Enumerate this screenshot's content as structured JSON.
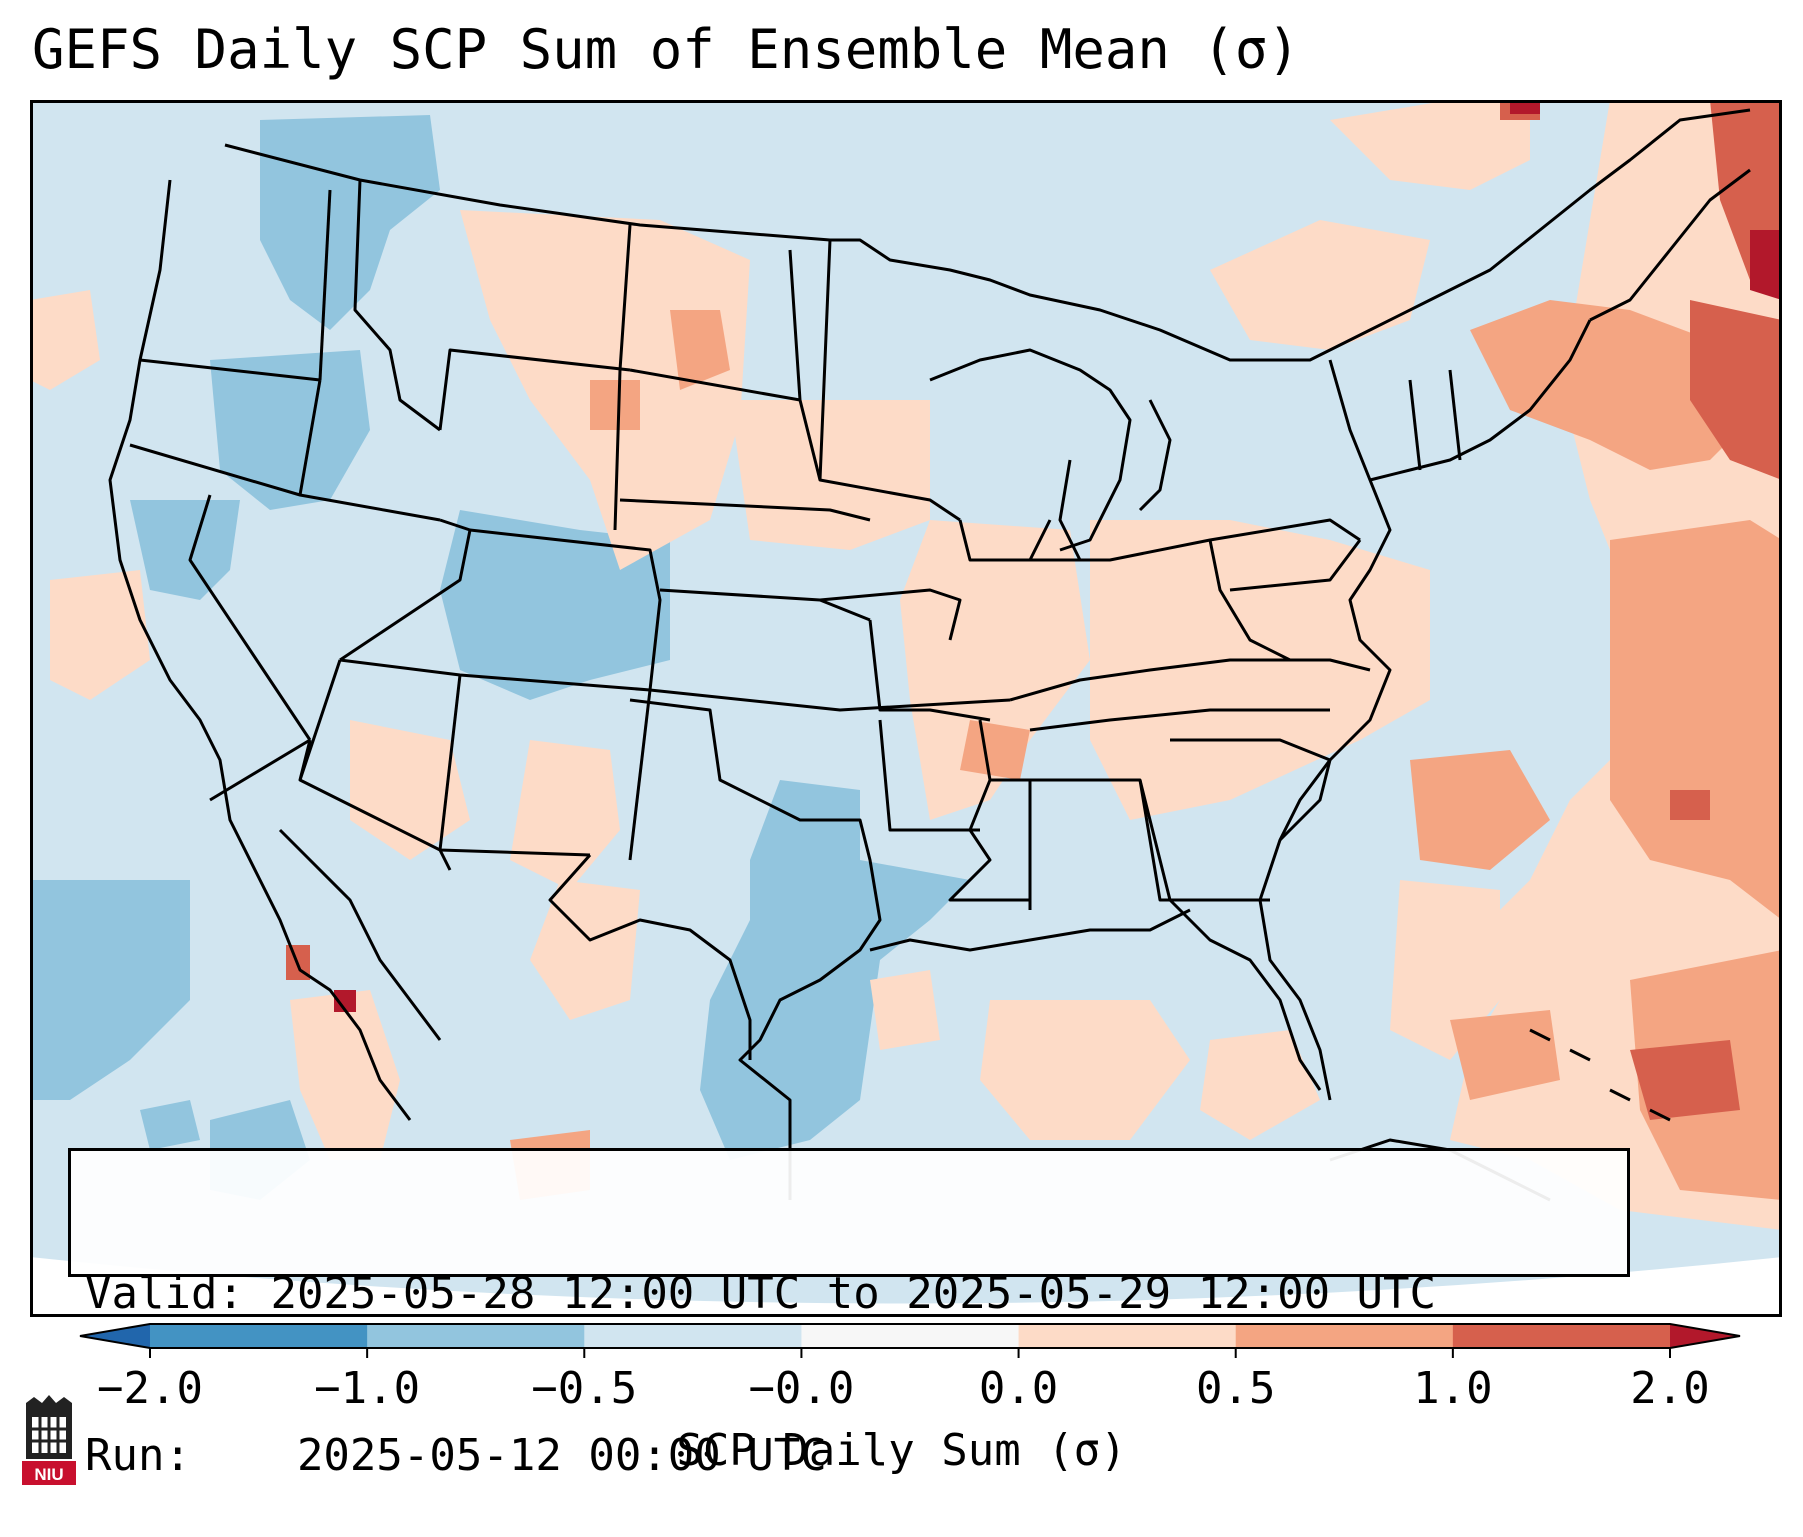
{
  "title": "GEFS Daily SCP Sum of Ensemble Mean (σ)",
  "info": {
    "valid_label": "Valid:",
    "valid_value": "2025-05-28 12:00 UTC to 2025-05-29 12:00 UTC",
    "run_label": "Run:",
    "run_value": "2025-05-12 00:00 UTC"
  },
  "colorbar": {
    "label": "SCP Daily Sum (σ)",
    "ticks": [
      "−2.0",
      "−1.0",
      "−0.5",
      "−0.0",
      "0.0",
      "0.5",
      "1.0",
      "2.0"
    ],
    "bins": [
      {
        "from": -2.0,
        "to": -1.0,
        "color": "#4393c3"
      },
      {
        "from": -1.0,
        "to": -0.5,
        "color": "#92c5de"
      },
      {
        "from": -0.5,
        "to": -0.0,
        "color": "#d1e5f0"
      },
      {
        "from": -0.0,
        "to": 0.0,
        "color": "#f7f7f7"
      },
      {
        "from": 0.0,
        "to": 0.5,
        "color": "#fddbc7"
      },
      {
        "from": 0.5,
        "to": 1.0,
        "color": "#f4a582"
      },
      {
        "from": 1.0,
        "to": 2.0,
        "color": "#d6604d"
      }
    ],
    "under_color": "#2166ac",
    "over_color": "#b2182b"
  },
  "logo": {
    "text": "NIU",
    "color": "#c8102e"
  }
}
